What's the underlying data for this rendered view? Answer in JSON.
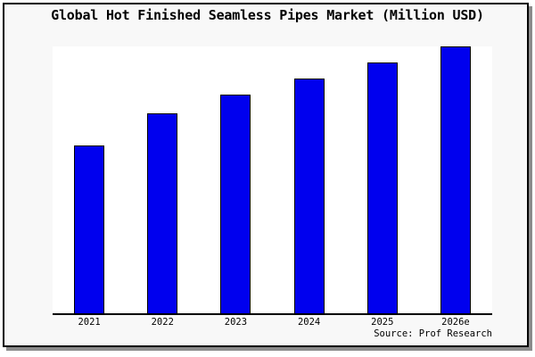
{
  "window": {
    "background": "#ffffff",
    "frame_background": "#f8f8f8",
    "frame_border_color": "#000000",
    "frame_shadow_color": "#8c8c8c"
  },
  "chart": {
    "title": "Global Hot Finished Seamless Pipes Market (Million USD)",
    "source_label": "Source: Prof Research"
  },
  "chart_data": {
    "type": "bar",
    "title": "Global Hot Finished Seamless Pipes Market (Million USD)",
    "categories": [
      "2021",
      "2022",
      "2023",
      "2024",
      "2025",
      "2026e"
    ],
    "values": [
      63,
      75,
      82,
      88,
      94,
      100
    ],
    "value_scale_note": "no y-axis ticks or value labels shown; values are relative bar heights estimated from pixels with 2026e = 100",
    "xlabel": "",
    "ylabel": "",
    "ylim": [
      0,
      100
    ],
    "grid": false,
    "legend": false,
    "y_axis_visible": false,
    "bar_color": "#0000ee",
    "bar_border_color": "#000000",
    "plot_background": "#ffffff",
    "annotations": [
      "Source: Prof Research"
    ]
  }
}
